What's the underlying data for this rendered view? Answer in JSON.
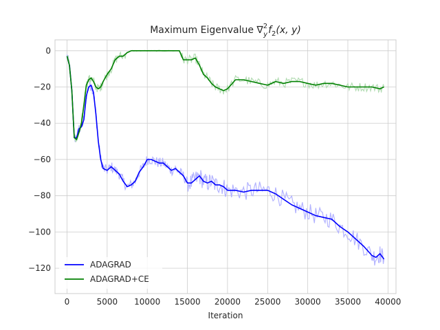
{
  "chart_data": {
    "type": "line",
    "title": "Maximum Eigenvalue ∇",
    "title_math": {
      "sup": "2",
      "sub": "y",
      "fn": "f",
      "fn_sub": "2",
      "args": "(x, y)"
    },
    "xlabel": "Iteration",
    "ylabel": "",
    "xlim": [
      -1500,
      41000
    ],
    "ylim": [
      -134,
      6
    ],
    "xticks": [
      0,
      5000,
      10000,
      15000,
      20000,
      25000,
      30000,
      35000,
      40000
    ],
    "yticks": [
      0,
      -20,
      -40,
      -60,
      -80,
      -100,
      -120
    ],
    "grid": true,
    "legend": {
      "position": "lower-left"
    },
    "series": [
      {
        "name": "ADAGRAD",
        "color": "#0000ff",
        "raw_color": "#b3b3ff",
        "x": [
          0,
          300,
          600,
          900,
          1200,
          1500,
          1800,
          2100,
          2400,
          2700,
          3000,
          3300,
          3600,
          3900,
          4200,
          4500,
          5000,
          5500,
          6000,
          6500,
          7000,
          7500,
          8000,
          8500,
          9000,
          9500,
          10000,
          10500,
          11000,
          11500,
          12000,
          12500,
          13000,
          13500,
          14000,
          14500,
          15000,
          15500,
          16000,
          16500,
          17000,
          17500,
          18000,
          18500,
          19000,
          19500,
          20000,
          21000,
          22000,
          23000,
          24000,
          25000,
          26000,
          27000,
          28000,
          29000,
          30000,
          31000,
          32000,
          33000,
          34000,
          35000,
          36000,
          37000,
          38000,
          38500,
          39000,
          39500
        ],
        "values": [
          -3,
          -8,
          -22,
          -48,
          -48,
          -43,
          -42,
          -38,
          -25,
          -20,
          -19,
          -23,
          -35,
          -50,
          -60,
          -65,
          -66,
          -64,
          -66,
          -68,
          -72,
          -75,
          -74,
          -72,
          -67,
          -64,
          -60,
          -60,
          -61,
          -62,
          -62,
          -64,
          -66,
          -65,
          -67,
          -69,
          -73,
          -73,
          -71,
          -69,
          -72,
          -73,
          -72,
          -74,
          -74,
          -75,
          -77,
          -77,
          -78,
          -77,
          -77,
          -77,
          -79,
          -82,
          -85,
          -87,
          -89,
          -91,
          -92,
          -93,
          -97,
          -100,
          -104,
          -108,
          -113,
          -114,
          -112,
          -115
        ]
      },
      {
        "name": "ADAGRAD+CE",
        "color": "#008000",
        "raw_color": "#b3dcb3",
        "x": [
          0,
          300,
          600,
          900,
          1200,
          1500,
          1800,
          2100,
          2400,
          2700,
          3000,
          3300,
          3600,
          3900,
          4200,
          4500,
          5000,
          5500,
          6000,
          6500,
          7000,
          7500,
          8000,
          9000,
          10000,
          11000,
          12000,
          13000,
          14000,
          14500,
          15000,
          15500,
          16000,
          16500,
          17000,
          17500,
          18000,
          18500,
          19000,
          19500,
          20000,
          21000,
          22000,
          23000,
          24000,
          25000,
          26000,
          27000,
          28000,
          29000,
          30000,
          31000,
          32000,
          33000,
          34000,
          35000,
          36000,
          37000,
          38000,
          39000,
          39500
        ],
        "values": [
          -3,
          -8,
          -22,
          -48,
          -49,
          -45,
          -40,
          -30,
          -19,
          -16,
          -15,
          -17,
          -20,
          -21,
          -20,
          -17,
          -13,
          -10,
          -5,
          -3,
          -3,
          -1,
          0,
          0,
          0,
          0,
          0,
          0,
          0,
          -5,
          -5,
          -5,
          -4,
          -8,
          -13,
          -15,
          -18,
          -20,
          -21,
          -22,
          -21,
          -16,
          -16,
          -17,
          -18,
          -19,
          -17,
          -18,
          -17,
          -17,
          -18,
          -19,
          -18,
          -18,
          -19,
          -20,
          -20,
          -20,
          -20,
          -21,
          -20
        ]
      }
    ]
  }
}
